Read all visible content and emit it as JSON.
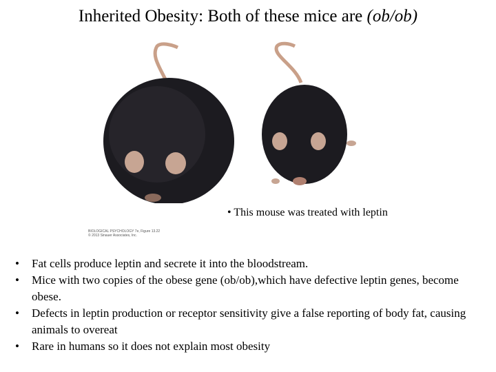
{
  "header": {
    "title": "Inherited Obesity: Both of these mice are",
    "title_italic": "(ob/ob)"
  },
  "figure": {
    "caption": "This mouse was treated with leptin",
    "credit": [
      "BIOLOGICAL PSYCHOLOGY 7e, Figure 13.22",
      "© 2013 Sinauer Associates, Inc."
    ]
  },
  "bullets": [
    "Fat cells produce leptin and secrete it into the bloodstream.",
    "Mice with two copies of the obese gene (ob/ob),which have defective leptin genes, become obese.",
    "Defects in leptin production or receptor sensitivity give a false reporting of body fat, causing animals to overeat",
    "Rare in humans so it does not explain most obesity"
  ]
}
